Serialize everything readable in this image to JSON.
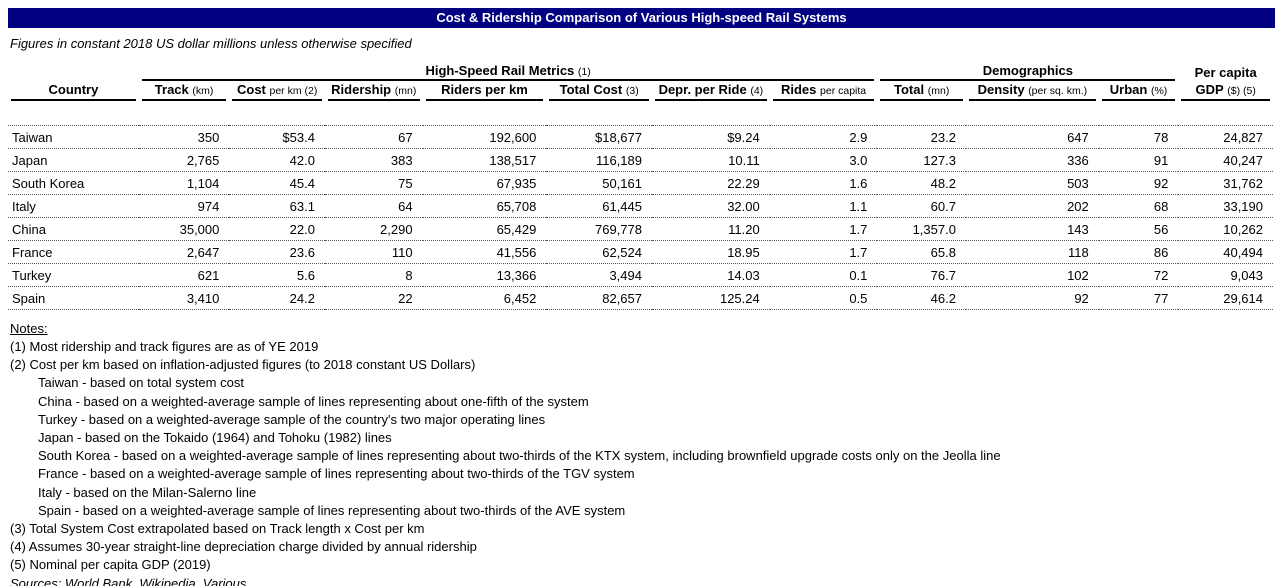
{
  "title": "Cost & Ridership Comparison of Various High-speed Rail Systems",
  "subtitle": "Figures in constant 2018 US dollar millions unless otherwise specified",
  "colors": {
    "title_bg": "#000080",
    "title_text": "#FFFFFF"
  },
  "table": {
    "group_headers": [
      {
        "label": "High-Speed Rail Metrics",
        "suffix": "(1)"
      },
      {
        "label": "Demographics",
        "suffix": ""
      },
      {
        "label": "Per capita",
        "suffix": ""
      }
    ],
    "columns": [
      {
        "label": "Country",
        "unit": ""
      },
      {
        "label": "Track",
        "unit": "(km)"
      },
      {
        "label": "Cost",
        "unit": "per km (2)"
      },
      {
        "label": "Ridership",
        "unit": "(mn)"
      },
      {
        "label": "Riders per km",
        "unit": ""
      },
      {
        "label": "Total Cost",
        "unit": "(3)"
      },
      {
        "label": "Depr. per Ride",
        "unit": "(4)"
      },
      {
        "label": "Rides",
        "unit": "per capita"
      },
      {
        "label": "Total",
        "unit": "(mn)"
      },
      {
        "label": "Density",
        "unit": "(per sq. km.)"
      },
      {
        "label": "Urban",
        "unit": "(%)"
      },
      {
        "label": "GDP",
        "unit": "($) (5)"
      }
    ],
    "rows": [
      [
        "Taiwan",
        "350",
        "$53.4",
        "67",
        "192,600",
        "$18,677",
        "$9.24",
        "2.9",
        "23.2",
        "647",
        "78",
        "24,827"
      ],
      [
        "Japan",
        "2,765",
        "42.0",
        "383",
        "138,517",
        "116,189",
        "10.11",
        "3.0",
        "127.3",
        "336",
        "91",
        "40,247"
      ],
      [
        "South Korea",
        "1,104",
        "45.4",
        "75",
        "67,935",
        "50,161",
        "22.29",
        "1.6",
        "48.2",
        "503",
        "92",
        "31,762"
      ],
      [
        "Italy",
        "974",
        "63.1",
        "64",
        "65,708",
        "61,445",
        "32.00",
        "1.1",
        "60.7",
        "202",
        "68",
        "33,190"
      ],
      [
        "China",
        "35,000",
        "22.0",
        "2,290",
        "65,429",
        "769,778",
        "11.20",
        "1.7",
        "1,357.0",
        "143",
        "56",
        "10,262"
      ],
      [
        "France",
        "2,647",
        "23.6",
        "110",
        "41,556",
        "62,524",
        "18.95",
        "1.7",
        "65.8",
        "118",
        "86",
        "40,494"
      ],
      [
        "Turkey",
        "621",
        "5.6",
        "8",
        "13,366",
        "3,494",
        "14.03",
        "0.1",
        "76.7",
        "102",
        "72",
        "9,043"
      ],
      [
        "Spain",
        "3,410",
        "24.2",
        "22",
        "6,452",
        "82,657",
        "125.24",
        "0.5",
        "46.2",
        "92",
        "77",
        "29,614"
      ]
    ]
  },
  "notes": {
    "heading": "Notes:",
    "lines": [
      {
        "text": "(1) Most ridership and track figures are as of YE 2019",
        "indent": 0
      },
      {
        "text": "(2) Cost per km based on inflation-adjusted figures (to 2018 constant US Dollars)",
        "indent": 0
      },
      {
        "text": "Taiwan - based on total system cost",
        "indent": 1
      },
      {
        "text": "China - based on a weighted-average sample of lines representing about one-fifth of the system",
        "indent": 1
      },
      {
        "text": "Turkey - based on a weighted-average sample of the country's two major operating lines",
        "indent": 1
      },
      {
        "text": "Japan - based on the Tokaido (1964) and Tohoku (1982) lines",
        "indent": 1
      },
      {
        "text": "South Korea - based on a weighted-average sample of lines representing about two-thirds of the KTX system, including brownfield upgrade costs only on the Jeolla line",
        "indent": 1
      },
      {
        "text": "France - based on a weighted-average sample of lines representing about two-thirds of the TGV system",
        "indent": 1
      },
      {
        "text": "Italy - based on the Milan-Salerno line",
        "indent": 1
      },
      {
        "text": "Spain - based on a weighted-average sample of lines representing about two-thirds of the AVE system",
        "indent": 1
      },
      {
        "text": "(3) Total System Cost extrapolated based on Track length x Cost per km",
        "indent": 0
      },
      {
        "text": "(4) Assumes 30-year straight-line depreciation charge divided by annual ridership",
        "indent": 0
      },
      {
        "text": "(5) Nominal per capita GDP (2019)",
        "indent": 0
      }
    ],
    "sources": "Sources: World Bank, Wikipedia, Various"
  }
}
